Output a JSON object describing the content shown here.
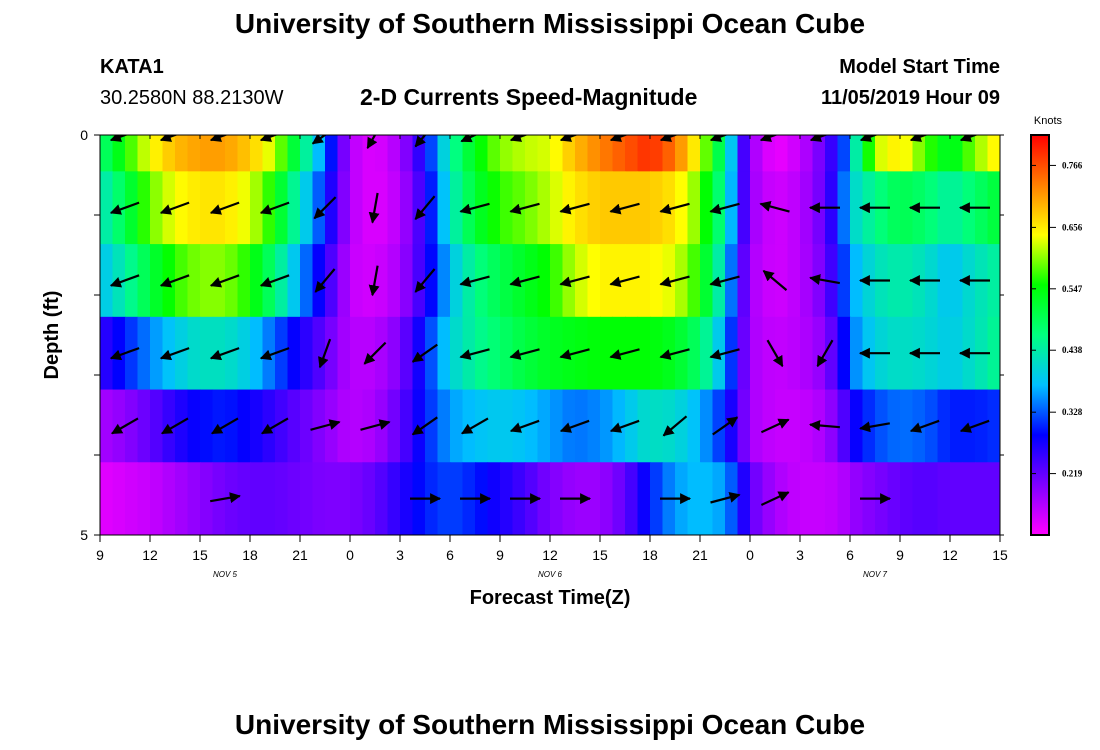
{
  "header": {
    "title_top": "University of Southern Mississippi Ocean Cube",
    "title_bottom": "University of Southern Mississippi Ocean Cube",
    "station_id": "KATA1",
    "coords": "30.2580N 88.2130W",
    "chart_title": "2-D Currents Speed-Magnitude",
    "model_start_label": "Model Start Time",
    "model_start_value": "11/05/2019 Hour 09"
  },
  "colors": {
    "stops": [
      "#ff00ff",
      "#8000ff",
      "#0000ff",
      "#00c0ff",
      "#00ff80",
      "#00ff00",
      "#ffff00",
      "#ff8000",
      "#ff0000"
    ]
  },
  "chart_data": {
    "type": "heatmap",
    "title": "2-D Currents Speed-Magnitude",
    "xlabel": "Forecast Time(Z)",
    "ylabel": "Depth (ft)",
    "x_tick_labels": [
      "9",
      "12",
      "15",
      "18",
      "21",
      "0",
      "3",
      "6",
      "9",
      "12",
      "15",
      "18",
      "21",
      "0",
      "3",
      "6",
      "9",
      "12",
      "15"
    ],
    "x_hours_range": [
      0,
      54
    ],
    "day_labels": [
      {
        "label": "NOV  5",
        "hour": 7.5
      },
      {
        "label": "NOV  6",
        "hour": 27
      },
      {
        "label": "NOV  7",
        "hour": 46.5
      }
    ],
    "y_tick_labels": [
      "0",
      "5"
    ],
    "ylim": [
      0,
      5
    ],
    "colorbar_title": "Knots",
    "colorbar_ticks": [
      "0.766",
      "0.656",
      "0.547",
      "0.438",
      "0.328",
      "0.219"
    ],
    "colorbar_tick_values": [
      0.766,
      0.656,
      0.547,
      0.438,
      0.328,
      0.219
    ],
    "colorbar_range": [
      0.11,
      0.82
    ],
    "row_depths_ft": [
      0,
      1,
      2,
      3,
      4,
      5
    ],
    "speed_hours": [
      0,
      1.5,
      3,
      4.5,
      6,
      7.5,
      9,
      10.5,
      12,
      13.5,
      14.5,
      15,
      16.5,
      18,
      19.5,
      21,
      22.5,
      24,
      25.5,
      27,
      28.5,
      30,
      31.5,
      33,
      34.5,
      36,
      37.5,
      38.5,
      39,
      40.5,
      42,
      43.5,
      44.5,
      45,
      46.5,
      48,
      49.5,
      51,
      52.5,
      54
    ],
    "speed_rows": [
      [
        0.47,
        0.56,
        0.64,
        0.69,
        0.71,
        0.71,
        0.68,
        0.62,
        0.48,
        0.34,
        0.22,
        0.16,
        0.13,
        0.17,
        0.28,
        0.44,
        0.54,
        0.6,
        0.62,
        0.63,
        0.69,
        0.73,
        0.76,
        0.79,
        0.74,
        0.63,
        0.46,
        0.26,
        0.18,
        0.12,
        0.15,
        0.22,
        0.3,
        0.38,
        0.62,
        0.66,
        0.58,
        0.52,
        0.6,
        0.66
      ],
      [
        0.42,
        0.5,
        0.59,
        0.64,
        0.66,
        0.66,
        0.63,
        0.55,
        0.42,
        0.3,
        0.21,
        0.16,
        0.13,
        0.16,
        0.26,
        0.42,
        0.52,
        0.57,
        0.59,
        0.62,
        0.66,
        0.68,
        0.68,
        0.68,
        0.66,
        0.59,
        0.44,
        0.26,
        0.18,
        0.14,
        0.16,
        0.22,
        0.32,
        0.4,
        0.46,
        0.5,
        0.48,
        0.44,
        0.48,
        0.52
      ],
      [
        0.38,
        0.44,
        0.51,
        0.57,
        0.6,
        0.6,
        0.56,
        0.47,
        0.36,
        0.26,
        0.19,
        0.15,
        0.14,
        0.17,
        0.26,
        0.38,
        0.46,
        0.5,
        0.53,
        0.56,
        0.62,
        0.65,
        0.65,
        0.65,
        0.63,
        0.56,
        0.4,
        0.24,
        0.17,
        0.14,
        0.16,
        0.21,
        0.3,
        0.36,
        0.42,
        0.44,
        0.42,
        0.38,
        0.42,
        0.45
      ],
      [
        0.25,
        0.3,
        0.35,
        0.39,
        0.42,
        0.42,
        0.39,
        0.33,
        0.27,
        0.22,
        0.18,
        0.16,
        0.16,
        0.2,
        0.3,
        0.4,
        0.45,
        0.48,
        0.51,
        0.53,
        0.54,
        0.55,
        0.55,
        0.55,
        0.53,
        0.48,
        0.36,
        0.23,
        0.17,
        0.15,
        0.16,
        0.19,
        0.27,
        0.34,
        0.4,
        0.42,
        0.41,
        0.39,
        0.42,
        0.46
      ],
      [
        0.17,
        0.19,
        0.22,
        0.26,
        0.29,
        0.3,
        0.28,
        0.25,
        0.22,
        0.19,
        0.17,
        0.16,
        0.17,
        0.22,
        0.3,
        0.36,
        0.38,
        0.39,
        0.38,
        0.36,
        0.34,
        0.35,
        0.38,
        0.42,
        0.41,
        0.37,
        0.3,
        0.22,
        0.17,
        0.15,
        0.15,
        0.17,
        0.22,
        0.27,
        0.32,
        0.34,
        0.33,
        0.3,
        0.3,
        0.31
      ],
      [
        0.13,
        0.14,
        0.15,
        0.17,
        0.19,
        0.21,
        0.22,
        0.22,
        0.21,
        0.2,
        0.2,
        0.2,
        0.22,
        0.26,
        0.3,
        0.32,
        0.3,
        0.27,
        0.24,
        0.2,
        0.18,
        0.18,
        0.22,
        0.3,
        0.36,
        0.38,
        0.36,
        0.28,
        0.22,
        0.17,
        0.15,
        0.15,
        0.16,
        0.18,
        0.2,
        0.22,
        0.23,
        0.22,
        0.22,
        0.22
      ]
    ],
    "vector_hours": [
      1.5,
      4.5,
      7.5,
      10.5,
      13.5,
      16.5,
      19.5,
      22.5,
      25.5,
      28.5,
      31.5,
      34.5,
      37.5,
      40.5,
      43.5,
      46.5,
      49.5,
      52.5
    ],
    "vector_angles_deg": [
      [
        200,
        200,
        200,
        200,
        215,
        240,
        230,
        205,
        200,
        200,
        200,
        200,
        200,
        200,
        200,
        200,
        200,
        200
      ],
      [
        200,
        200,
        200,
        200,
        225,
        260,
        230,
        195,
        195,
        195,
        195,
        195,
        195,
        165,
        180,
        180,
        180,
        180
      ],
      [
        200,
        200,
        200,
        200,
        230,
        260,
        230,
        195,
        195,
        195,
        195,
        195,
        195,
        140,
        170,
        180,
        180,
        180
      ],
      [
        200,
        200,
        200,
        200,
        250,
        225,
        215,
        195,
        195,
        195,
        195,
        195,
        195,
        300,
        240,
        180,
        180,
        180
      ],
      [
        210,
        210,
        210,
        210,
        15,
        15,
        215,
        210,
        200,
        200,
        200,
        220,
        35,
        25,
        175,
        190,
        200,
        200
      ],
      [
        0,
        0,
        10,
        0,
        0,
        0,
        0,
        0,
        0,
        0,
        0,
        0,
        15,
        25,
        0,
        0,
        0,
        0
      ]
    ],
    "vector_lengths": [
      [
        1,
        1,
        1,
        1,
        1,
        1,
        1,
        1,
        1,
        1,
        1,
        1,
        1,
        1,
        1,
        1,
        1,
        1
      ],
      [
        1,
        1,
        1,
        1,
        1,
        1,
        1,
        1,
        1,
        1,
        1,
        1,
        1,
        1,
        1,
        1,
        1,
        1
      ],
      [
        1,
        1,
        1,
        1,
        1,
        1,
        1,
        1,
        1,
        1,
        1,
        1,
        1,
        1,
        1,
        1,
        1,
        1
      ],
      [
        1,
        1,
        1,
        1,
        1,
        1,
        1,
        1,
        1,
        1,
        1,
        1,
        1,
        1,
        1,
        1,
        1,
        1
      ],
      [
        1,
        1,
        1,
        1,
        1,
        1,
        1,
        1,
        1,
        1,
        1,
        1,
        1,
        1,
        1,
        1,
        1,
        1
      ],
      [
        0,
        0,
        1,
        0,
        0,
        0,
        1,
        1,
        1,
        1,
        0,
        1,
        1,
        1,
        0,
        1,
        0,
        0
      ]
    ]
  }
}
